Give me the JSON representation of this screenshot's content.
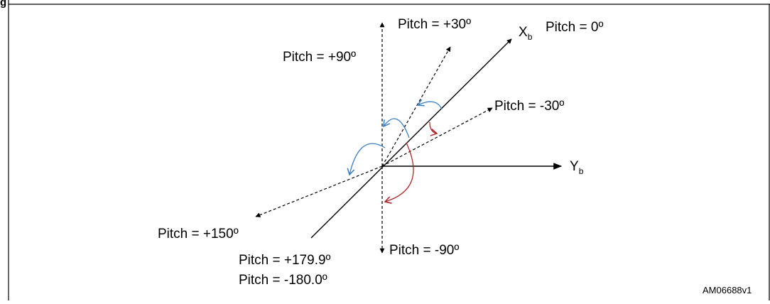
{
  "figure": {
    "label_fragment": "g",
    "code": "AM06688v1"
  },
  "axes": {
    "xb": {
      "main": "X",
      "subscript": "b"
    },
    "yb": {
      "main": "Y",
      "subscript": "b"
    }
  },
  "pitch_labels": {
    "p0": "Pitch = 0º",
    "p30": "Pitch = +30º",
    "p90": "Pitch = +90º",
    "pm30": "Pitch = -30º",
    "p150": "Pitch = +150º",
    "pm90": "Pitch = -90º",
    "p1799": "Pitch = +179.9º",
    "pm180": "Pitch = -180.0º"
  },
  "colors": {
    "positive_rotation": "#3d7fc1",
    "negative_rotation": "#b0282c",
    "line": "#000000"
  }
}
